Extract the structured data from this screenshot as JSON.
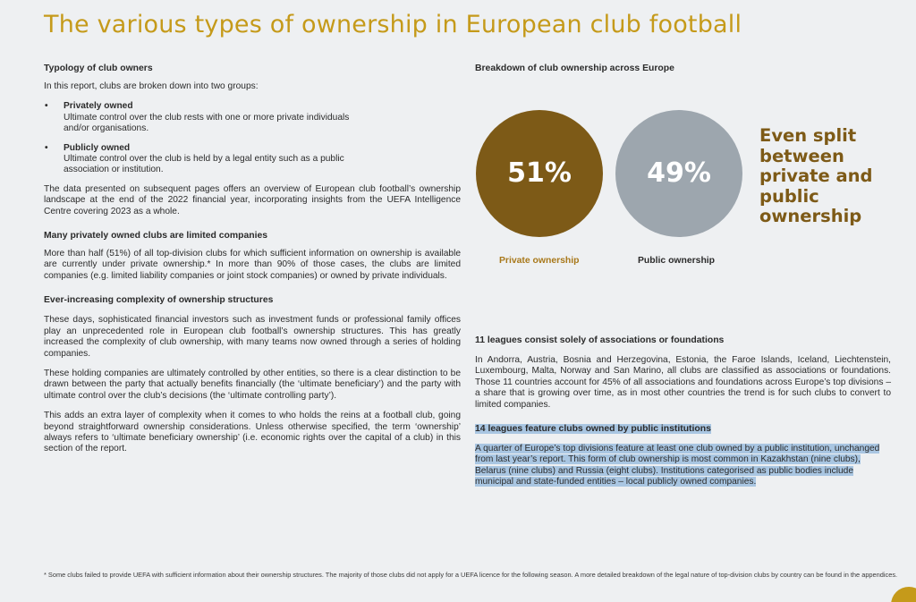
{
  "title": "The various types of ownership in European club football",
  "left": {
    "typology": {
      "heading": "Typology of club owners",
      "intro": "In this report, clubs are broken down into two groups:",
      "groups": [
        {
          "bullet": "•",
          "title": "Privately owned",
          "desc": "Ultimate control over the club rests with one or more private individuals and/or organisations."
        },
        {
          "bullet": "•",
          "title": "Publicly owned",
          "desc": "Ultimate control over the club is held by a legal entity such as a public association or institution."
        }
      ],
      "body": "The data presented on subsequent pages offers an overview of European club football’s ownership landscape at the end of the 2022 financial year, incorporating insights from the UEFA Intelligence Centre covering 2023 as a whole."
    },
    "private_section": {
      "heading": "Many privately owned clubs are limited companies",
      "body": "More than half (51%) of all top-division clubs for which sufficient information on ownership is available are currently under private ownership.* In more than 90% of those cases, the clubs are limited companies (e.g. limited liability companies or joint stock companies) or owned by private individuals."
    },
    "complexity_section": {
      "heading": "Ever-increasing complexity of ownership structures",
      "p1": "These days, sophisticated financial investors such as investment funds or professional family offices play an unprecedented role in European club football’s ownership structures. This has greatly increased the complexity of club ownership, with many teams now owned through a series of holding companies.",
      "p2": "These holding companies are ultimately controlled by other entities, so there is a clear distinction to be drawn between the party that actually benefits financially (the ‘ultimate beneficiary’) and the party with ultimate control over the club’s decisions (the ‘ultimate controlling party’).",
      "p3": "This adds an extra layer of complexity when it comes to who holds the reins at a football club, going beyond straightforward ownership considerations. Unless otherwise specified, the term ‘ownership’ always refers to ‘ultimate beneficiary ownership’ (i.e. economic rights over the capital of a club) in this section of the report."
    }
  },
  "right": {
    "breakdown_heading": "Breakdown of club ownership across Europe",
    "chart_data": {
      "type": "pie",
      "categories": [
        "Private ownership",
        "Public ownership"
      ],
      "values": [
        51,
        49
      ],
      "value_labels": [
        "51%",
        "49%"
      ],
      "colors": [
        "#7d5a17",
        "#9da6ae"
      ],
      "title": "",
      "annotation": "Even split between private and public ownership"
    },
    "associations": {
      "heading": "11 leagues consist solely of associations or foundations",
      "body": "In Andorra, Austria, Bosnia and Herzegovina, Estonia, the Faroe Islands, Iceland, Liechtenstein, Luxembourg, Malta, Norway and San Marino, all clubs are classified as associations or foundations. Those 11 countries account for 45% of all associations and foundations across Europe’s top divisions – a share that is growing over time, as in most other countries the trend is for such clubs to convert to limited companies."
    },
    "public_institutions": {
      "heading": "14 leagues feature clubs owned by public institutions",
      "body": "A quarter of Europe’s top divisions feature at least one club owned by a public institution, unchanged from last year’s report. This form of club ownership is most common in Kazakhstan (nine clubs), Belarus (nine clubs) and Russia (eight clubs). Institutions categorised as public bodies include municipal and state-funded entities – local publicly owned companies."
    }
  },
  "footnote": "* Some clubs failed to provide UEFA with sufficient information about their ownership structures. The majority of those clubs did not apply for a UEFA licence for the following season. A more detailed breakdown of the legal nature of top-division clubs by country can be found in the appendices.",
  "colors": {
    "gold": "#c59a1a",
    "brown": "#7d5a17",
    "grey": "#9da6ae",
    "highlight": "#a9c6e2"
  }
}
